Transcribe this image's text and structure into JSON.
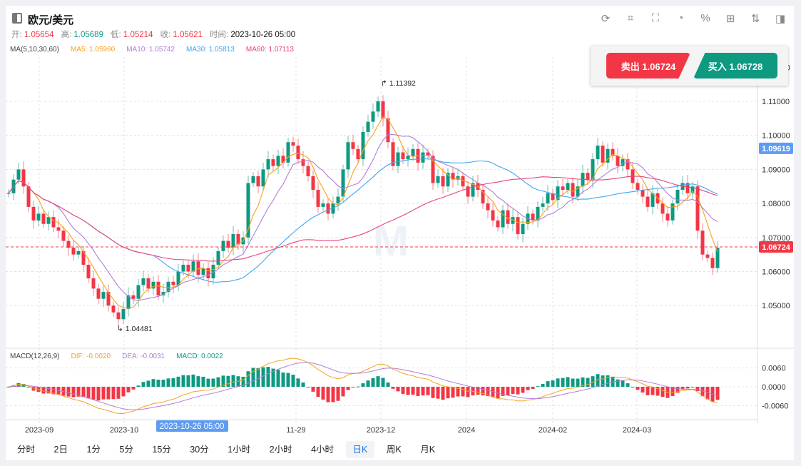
{
  "header": {
    "title": "欧元/美元",
    "tool_icons": [
      "refresh-icon",
      "draw-icon",
      "indicator-icon",
      "pie-icon",
      "percent-icon",
      "grid-icon",
      "sort-icon",
      "panel-icon"
    ]
  },
  "ohlc": {
    "open_label": "开:",
    "open": "1.05654",
    "high_label": "高:",
    "high": "1.05689",
    "low_label": "低:",
    "low": "1.05214",
    "close_label": "收:",
    "close": "1.05621",
    "time_label": "时间:",
    "time": "2023-10-26 05:00"
  },
  "ma": {
    "title": "MA(5,10,30,60)",
    "ma5": "MA5: 1.05960",
    "ma10": "MA10: 1.05742",
    "ma30": "MA30: 1.05813",
    "ma60": "MA60: 1.07113"
  },
  "macd": {
    "title": "MACD(12,26,9)",
    "dif": "DIF: -0.0020",
    "dea": "DEA: -0.0031",
    "macd": "MACD: 0.0022"
  },
  "trade": {
    "sell": "卖出 1.06724",
    "buy": "买入 1.06728"
  },
  "colors": {
    "up": "#0e9981",
    "down": "#f23645",
    "ma5": "#f7a21b",
    "ma10": "#b27ed6",
    "ma30": "#3ea6f2",
    "ma60": "#e8437a"
  },
  "chart_data": {
    "type": "candlestick",
    "price_ticks": [
      "1.12000",
      "1.11000",
      "1.10000",
      "1.09000",
      "1.08000",
      "1.07000",
      "1.06000",
      "1.05000"
    ],
    "macd_ticks": [
      "0.0060",
      "0.0000",
      "-0.0060"
    ],
    "x_labels": [
      "2023-09",
      "2023-10",
      "11-29",
      "2023-12",
      "2024",
      "2024-02",
      "2024-03"
    ],
    "crosshair_time": "2023-10-26 05:00",
    "current_price": "1.06724",
    "hover_price": "1.09619",
    "max_label": "1.11392",
    "min_label": "1.04481",
    "closes": [
      1.083,
      1.087,
      1.09,
      1.085,
      1.079,
      1.075,
      1.077,
      1.074,
      1.076,
      1.073,
      1.072,
      1.069,
      1.067,
      1.065,
      1.066,
      1.062,
      1.058,
      1.055,
      1.052,
      1.054,
      1.05,
      1.048,
      1.046,
      1.049,
      1.053,
      1.052,
      1.056,
      1.058,
      1.055,
      1.057,
      1.053,
      1.054,
      1.057,
      1.056,
      1.06,
      1.062,
      1.06,
      1.063,
      1.059,
      1.061,
      1.058,
      1.062,
      1.066,
      1.069,
      1.067,
      1.071,
      1.068,
      1.07,
      1.086,
      1.088,
      1.085,
      1.09,
      1.093,
      1.091,
      1.094,
      1.092,
      1.098,
      1.097,
      1.093,
      1.091,
      1.088,
      1.084,
      1.079,
      1.08,
      1.077,
      1.08,
      1.082,
      1.09,
      1.098,
      1.096,
      1.093,
      1.101,
      1.104,
      1.107,
      1.11,
      1.105,
      1.098,
      1.091,
      1.095,
      1.093,
      1.094,
      1.096,
      1.092,
      1.095,
      1.094,
      1.086,
      1.088,
      1.085,
      1.089,
      1.087,
      1.088,
      1.085,
      1.082,
      1.086,
      1.084,
      1.08,
      1.078,
      1.075,
      1.073,
      1.078,
      1.074,
      1.076,
      1.071,
      1.074,
      1.077,
      1.075,
      1.079,
      1.08,
      1.083,
      1.081,
      1.085,
      1.084,
      1.086,
      1.082,
      1.085,
      1.089,
      1.087,
      1.093,
      1.097,
      1.092,
      1.096,
      1.094,
      1.091,
      1.093,
      1.09,
      1.086,
      1.084,
      1.082,
      1.079,
      1.083,
      1.08,
      1.077,
      1.075,
      1.08,
      1.084,
      1.086,
      1.083,
      1.085,
      1.072,
      1.065,
      1.064,
      1.061,
      1.067
    ]
  }
}
